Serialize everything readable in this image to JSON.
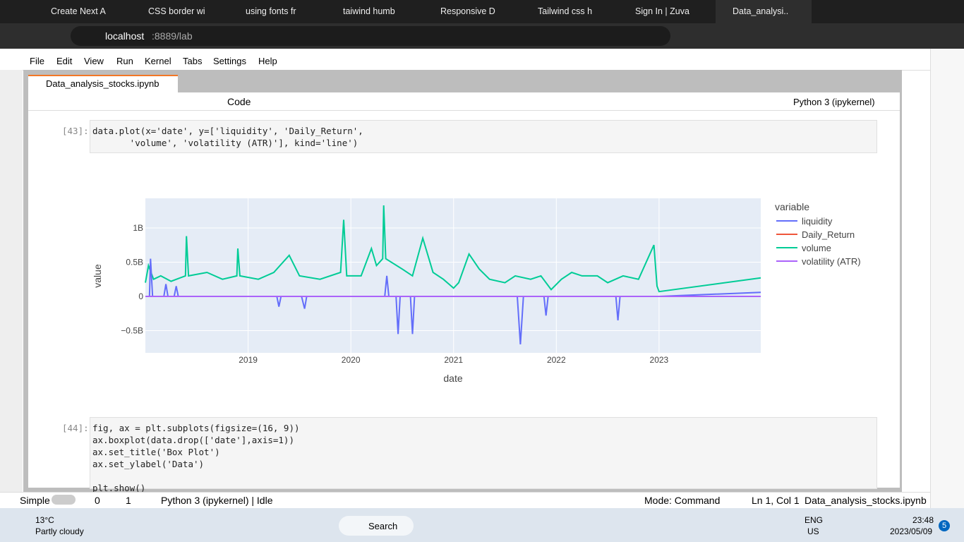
{
  "browser": {
    "tabs": [
      "Create Next A",
      "CSS border wi",
      "using fonts fr",
      "taiwind humb",
      "Responsive D",
      "Tailwind css h",
      "Sign In | Zuva",
      "Data_analysi.."
    ],
    "url_host": "localhost",
    "url_path": ":8889/lab"
  },
  "menu": [
    "File",
    "Edit",
    "View",
    "Run",
    "Kernel",
    "Tabs",
    "Settings",
    "Help"
  ],
  "notebook": {
    "tab": "Data_analysis_stocks.ipynb",
    "cell_type": "Code",
    "kernel": "Python 3 (ipykernel)",
    "cells": [
      {
        "prompt": "[43]:",
        "code": [
          "data.plot(x='date', y=['liquidity', 'Daily_Return',",
          "       'volume', 'volatility (ATR)'], kind='line')"
        ]
      },
      {
        "prompt": "[44]:",
        "code": [
          "fig, ax = plt.subplots(figsize=(16, 9))",
          "ax.boxplot(data.drop(['date'],axis=1))",
          "ax.set_title('Box Plot')",
          "ax.set_ylabel('Data')",
          "",
          "plt.show()"
        ]
      }
    ]
  },
  "chart_data": {
    "type": "line",
    "x_label": "date",
    "y_label": "value",
    "legend_title": "variable",
    "grid": true,
    "xlim": [
      2018.0,
      2023.99
    ],
    "xticks": [
      2019,
      2020,
      2021,
      2022,
      2023
    ],
    "ylim": [
      -825000000,
      1433000000
    ],
    "yticks": [
      {
        "value": -500000000,
        "label": "−0.5B"
      },
      0,
      {
        "value": 500000000,
        "label": "0.5B"
      },
      {
        "value": 1000000000,
        "label": "1B"
      }
    ],
    "series": [
      {
        "name": "liquidity",
        "color": "#636efa",
        "x": [
          2018.0,
          2018.04,
          2018.05,
          2018.07,
          2018.18,
          2018.2,
          2018.22,
          2018.28,
          2018.3,
          2018.32,
          2019.0,
          2019.28,
          2019.3,
          2019.32,
          2019.52,
          2019.55,
          2019.57,
          2020.0,
          2020.33,
          2020.35,
          2020.37,
          2020.44,
          2020.46,
          2020.48,
          2020.58,
          2020.6,
          2020.62,
          2021.0,
          2021.62,
          2021.65,
          2021.68,
          2021.88,
          2021.9,
          2021.92,
          2022.5,
          2022.58,
          2022.6,
          2022.62,
          2023.0,
          2023.99
        ],
        "values": [
          0,
          0,
          550000000,
          0,
          0,
          180000000,
          0,
          0,
          150000000,
          0,
          0,
          0,
          -150000000,
          0,
          0,
          -180000000,
          0,
          0,
          0,
          300000000,
          0,
          0,
          -550000000,
          0,
          0,
          -550000000,
          0,
          0,
          0,
          -700000000,
          0,
          0,
          -280000000,
          0,
          0,
          0,
          -350000000,
          0,
          0,
          60000000
        ]
      },
      {
        "name": "Daily_Return",
        "color": "#ef553b",
        "x": [
          2018.0,
          2023.99
        ],
        "values": [
          0,
          0
        ]
      },
      {
        "name": "volume",
        "color": "#00cc96",
        "x": [
          2018.0,
          2018.03,
          2018.08,
          2018.15,
          2018.25,
          2018.39,
          2018.4,
          2018.42,
          2018.6,
          2018.75,
          2018.89,
          2018.9,
          2018.92,
          2019.1,
          2019.25,
          2019.4,
          2019.5,
          2019.7,
          2019.9,
          2019.93,
          2019.96,
          2020.1,
          2020.2,
          2020.25,
          2020.31,
          2020.32,
          2020.34,
          2020.5,
          2020.6,
          2020.7,
          2020.8,
          2020.9,
          2021.0,
          2021.05,
          2021.15,
          2021.25,
          2021.35,
          2021.5,
          2021.6,
          2021.75,
          2021.85,
          2021.95,
          2022.05,
          2022.15,
          2022.25,
          2022.4,
          2022.5,
          2022.65,
          2022.8,
          2022.95,
          2022.98,
          2023.0,
          2023.99
        ],
        "values": [
          200000000,
          450000000,
          250000000,
          300000000,
          220000000,
          300000000,
          880000000,
          300000000,
          350000000,
          250000000,
          300000000,
          700000000,
          300000000,
          250000000,
          350000000,
          600000000,
          300000000,
          250000000,
          350000000,
          1120000000,
          300000000,
          300000000,
          700000000,
          450000000,
          550000000,
          1330000000,
          550000000,
          400000000,
          300000000,
          850000000,
          350000000,
          250000000,
          120000000,
          200000000,
          620000000,
          400000000,
          250000000,
          200000000,
          300000000,
          250000000,
          300000000,
          100000000,
          250000000,
          350000000,
          300000000,
          300000000,
          200000000,
          300000000,
          250000000,
          750000000,
          150000000,
          70000000,
          270000000
        ]
      },
      {
        "name": "volatility (ATR)",
        "color": "#ab63fa",
        "x": [
          2018.0,
          2023.99
        ],
        "values": [
          0,
          0
        ]
      }
    ]
  },
  "status": {
    "mode_label": "Simple",
    "count0": "0",
    "count1": "1",
    "kernel_state": "Python 3 (ipykernel) | Idle",
    "mode": "Mode: Command",
    "position": "Ln 1, Col 1",
    "file": "Data_analysis_stocks.ipynb"
  },
  "taskbar": {
    "temp": "13°C",
    "weather": "Partly cloudy",
    "search": "Search",
    "lang": "ENG",
    "region": "US",
    "time": "23:48",
    "date": "2023/05/09",
    "badge": "5"
  }
}
